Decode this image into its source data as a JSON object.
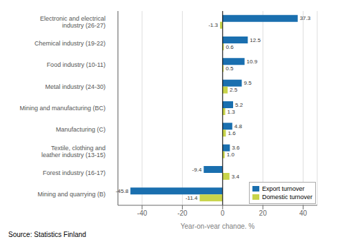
{
  "chart_data": {
    "type": "bar",
    "orientation": "horizontal",
    "categories": [
      "Mining and quarrying (B)",
      "Forest industry (16-17)",
      "Textile, clothing and\nleather industry (13-15)",
      "Manufacturing (C)",
      "Mining and manufacturing (BC)",
      "Metal industry (24-30)",
      "Food industry (10-11)",
      "Chemical industry (19-22)",
      "Electronic and electrical\nindustry (26-27)"
    ],
    "series": [
      {
        "name": "Export turnover",
        "color": "#1a6faf",
        "values": [
          -45.8,
          -9.4,
          3.6,
          4.8,
          5.2,
          9.5,
          10.9,
          12.5,
          37.3
        ]
      },
      {
        "name": "Domestic turnover",
        "color": "#c8d44a",
        "values": [
          -11.4,
          3.4,
          1.0,
          1.6,
          1.3,
          2.5,
          0.5,
          0.6,
          -1.3
        ],
        "value_labels": [
          "-11.4",
          "3.4",
          "1.0",
          "1.6",
          "1.3",
          "2.5",
          "0.5",
          "0.6",
          "-1.3"
        ]
      }
    ],
    "xlabel": "Year-on-year change, %",
    "xlim": [
      -52,
      47
    ],
    "xticks": [
      -40,
      -20,
      0,
      20,
      40
    ],
    "grid": "x",
    "legend": "lower right",
    "data_labels": true,
    "annotations": [
      "Source: Statistics Finland"
    ]
  }
}
